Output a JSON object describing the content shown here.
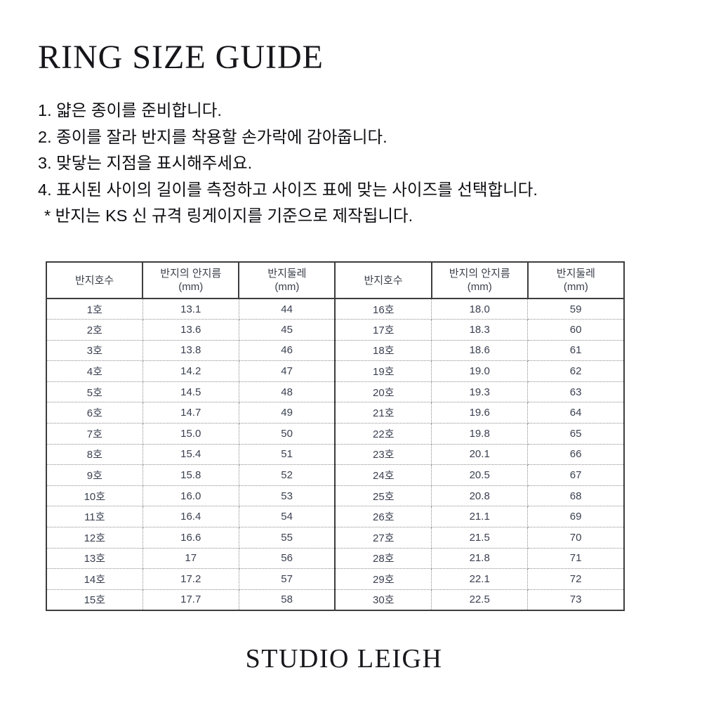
{
  "page": {
    "title": "RING SIZE GUIDE",
    "brand": "STUDIO LEIGH"
  },
  "instructions": {
    "lines": [
      "1. 얇은 종이를 준비합니다.",
      "2. 종이를 잘라 반지를 착용할 손가락에 감아줍니다.",
      "3. 맞닿는 지점을 표시해주세요.",
      "4. 표시된 사이의 길이를 측정하고 사이즈 표에 맞는 사이즈를 선택합니다.",
      "* 반지는 KS 신 규격 링게이지를 기준으로 제작됩니다."
    ]
  },
  "size_table": {
    "headers": [
      {
        "label": "반지호수",
        "unit": ""
      },
      {
        "label": "반지의 안지름",
        "unit": "(mm)"
      },
      {
        "label": "반지둘레",
        "unit": "(mm)"
      },
      {
        "label": "반지호수",
        "unit": ""
      },
      {
        "label": "반지의 안지름",
        "unit": "(mm)"
      },
      {
        "label": "반지둘레",
        "unit": "(mm)"
      }
    ],
    "rows": [
      [
        "1호",
        "13.1",
        "44",
        "16호",
        "18.0",
        "59"
      ],
      [
        "2호",
        "13.6",
        "45",
        "17호",
        "18.3",
        "60"
      ],
      [
        "3호",
        "13.8",
        "46",
        "18호",
        "18.6",
        "61"
      ],
      [
        "4호",
        "14.2",
        "47",
        "19호",
        "19.0",
        "62"
      ],
      [
        "5호",
        "14.5",
        "48",
        "20호",
        "19.3",
        "63"
      ],
      [
        "6호",
        "14.7",
        "49",
        "21호",
        "19.6",
        "64"
      ],
      [
        "7호",
        "15.0",
        "50",
        "22호",
        "19.8",
        "65"
      ],
      [
        "8호",
        "15.4",
        "51",
        "23호",
        "20.1",
        "66"
      ],
      [
        "9호",
        "15.8",
        "52",
        "24호",
        "20.5",
        "67"
      ],
      [
        "10호",
        "16.0",
        "53",
        "25호",
        "20.8",
        "68"
      ],
      [
        "11호",
        "16.4",
        "54",
        "26호",
        "21.1",
        "69"
      ],
      [
        "12호",
        "16.6",
        "55",
        "27호",
        "21.5",
        "70"
      ],
      [
        "13호",
        "17",
        "56",
        "28호",
        "21.8",
        "71"
      ],
      [
        "14호",
        "17.2",
        "57",
        "29호",
        "22.1",
        "72"
      ],
      [
        "15호",
        "17.7",
        "58",
        "30호",
        "22.5",
        "73"
      ]
    ]
  }
}
